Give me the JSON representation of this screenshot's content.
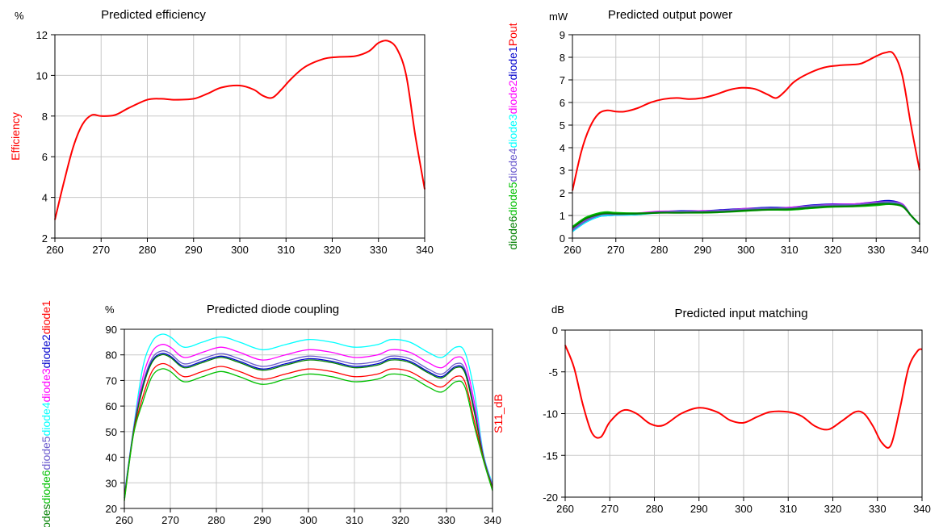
{
  "chart_data": [
    {
      "id": "efficiency",
      "type": "line",
      "title": "Predicted efficiency",
      "unit": "%",
      "xlabel": "",
      "ylabel_parts": [
        {
          "text": "Efficiency",
          "color": "#ff0000"
        }
      ],
      "xlim": [
        260,
        340
      ],
      "ylim": [
        2,
        12
      ],
      "xticks": [
        260,
        270,
        280,
        290,
        300,
        310,
        320,
        330,
        340
      ],
      "yticks": [
        2,
        4,
        6,
        8,
        10,
        12
      ],
      "grid": true,
      "series": [
        {
          "color": "#ff0000",
          "x": [
            260,
            262,
            264,
            266,
            268,
            270,
            273,
            276,
            280,
            283,
            286,
            290,
            293,
            296,
            300,
            303,
            305,
            307,
            309,
            311,
            314,
            318,
            321,
            325,
            328,
            330,
            332,
            334,
            336,
            338,
            340
          ],
          "y": [
            2.9,
            4.8,
            6.5,
            7.6,
            8.05,
            8.0,
            8.05,
            8.4,
            8.8,
            8.85,
            8.8,
            8.85,
            9.1,
            9.4,
            9.5,
            9.3,
            9.0,
            8.9,
            9.3,
            9.8,
            10.4,
            10.8,
            10.9,
            10.95,
            11.2,
            11.6,
            11.7,
            11.3,
            10.0,
            7.0,
            4.4
          ]
        }
      ]
    },
    {
      "id": "output_power",
      "type": "line",
      "title": "Predicted output power",
      "unit": "mW",
      "xlabel": "",
      "ylabel_parts": [
        {
          "text": "diode6",
          "color": "#008000"
        },
        {
          "text": "diode5",
          "color": "#00c000"
        },
        {
          "text": "diode4",
          "color": "#6a5acd"
        },
        {
          "text": "diode3",
          "color": "#00ffff"
        },
        {
          "text": "diode2",
          "color": "#ff00ff"
        },
        {
          "text": "diode1",
          "color": "#0000cd"
        },
        {
          "text": "Pout",
          "color": "#ff0000"
        }
      ],
      "xlim": [
        260,
        340
      ],
      "ylim": [
        0,
        9
      ],
      "xticks": [
        260,
        270,
        280,
        290,
        300,
        310,
        320,
        330,
        340
      ],
      "yticks": [
        0,
        1,
        2,
        3,
        4,
        5,
        6,
        7,
        8,
        9
      ],
      "grid": true,
      "series": [
        {
          "color": "#ff0000",
          "x": [
            260,
            262,
            264,
            266,
            268,
            270,
            272,
            275,
            278,
            281,
            284,
            287,
            290,
            293,
            296,
            299,
            302,
            305,
            307,
            309,
            311,
            314,
            318,
            322,
            326,
            328,
            330,
            332,
            334,
            336,
            338,
            340
          ],
          "y": [
            2.1,
            3.8,
            4.9,
            5.5,
            5.65,
            5.6,
            5.6,
            5.75,
            6.0,
            6.15,
            6.2,
            6.15,
            6.2,
            6.35,
            6.55,
            6.65,
            6.6,
            6.35,
            6.2,
            6.5,
            6.9,
            7.25,
            7.55,
            7.65,
            7.7,
            7.85,
            8.05,
            8.2,
            8.15,
            7.2,
            5.0,
            3.0
          ]
        },
        {
          "color": "#0000cd",
          "x": [
            260,
            263,
            266,
            268,
            270,
            275,
            280,
            285,
            290,
            295,
            300,
            305,
            310,
            315,
            320,
            325,
            330,
            333,
            336,
            338,
            340
          ],
          "y": [
            0.3,
            0.7,
            0.95,
            1.0,
            1.02,
            1.05,
            1.15,
            1.2,
            1.2,
            1.25,
            1.3,
            1.35,
            1.35,
            1.45,
            1.5,
            1.5,
            1.6,
            1.65,
            1.5,
            1.0,
            0.6
          ]
        },
        {
          "color": "#ff00ff",
          "x": [
            260,
            263,
            266,
            268,
            270,
            275,
            280,
            285,
            290,
            295,
            300,
            305,
            310,
            315,
            320,
            325,
            330,
            333,
            336,
            338,
            340
          ],
          "y": [
            0.4,
            0.8,
            1.05,
            1.1,
            1.1,
            1.1,
            1.18,
            1.18,
            1.2,
            1.22,
            1.3,
            1.3,
            1.35,
            1.42,
            1.48,
            1.5,
            1.58,
            1.6,
            1.5,
            1.0,
            0.6
          ]
        },
        {
          "color": "#00ffff",
          "x": [
            260,
            263,
            266,
            268,
            270,
            275,
            280,
            285,
            290,
            295,
            300,
            305,
            310,
            315,
            320,
            325,
            330,
            333,
            336,
            338,
            340
          ],
          "y": [
            0.3,
            0.7,
            0.95,
            1.0,
            1.02,
            1.05,
            1.12,
            1.15,
            1.15,
            1.2,
            1.25,
            1.3,
            1.3,
            1.4,
            1.45,
            1.45,
            1.55,
            1.58,
            1.45,
            1.0,
            0.6
          ]
        },
        {
          "color": "#6a5acd",
          "x": [
            260,
            263,
            266,
            268,
            270,
            275,
            280,
            285,
            290,
            295,
            300,
            305,
            310,
            315,
            320,
            325,
            330,
            333,
            336,
            338,
            340
          ],
          "y": [
            0.35,
            0.75,
            1.0,
            1.05,
            1.05,
            1.08,
            1.15,
            1.18,
            1.18,
            1.22,
            1.28,
            1.32,
            1.32,
            1.42,
            1.46,
            1.48,
            1.56,
            1.6,
            1.48,
            1.0,
            0.6
          ]
        },
        {
          "color": "#00c000",
          "x": [
            260,
            263,
            266,
            268,
            270,
            275,
            280,
            285,
            290,
            295,
            300,
            305,
            310,
            315,
            320,
            325,
            330,
            333,
            336,
            338,
            340
          ],
          "y": [
            0.5,
            0.9,
            1.1,
            1.15,
            1.12,
            1.1,
            1.12,
            1.12,
            1.12,
            1.15,
            1.2,
            1.25,
            1.25,
            1.32,
            1.38,
            1.4,
            1.45,
            1.5,
            1.4,
            1.0,
            0.6
          ]
        },
        {
          "color": "#008000",
          "x": [
            260,
            263,
            266,
            268,
            270,
            275,
            280,
            285,
            290,
            295,
            300,
            305,
            310,
            315,
            320,
            325,
            330,
            333,
            336,
            338,
            340
          ],
          "y": [
            0.45,
            0.85,
            1.05,
            1.1,
            1.08,
            1.08,
            1.12,
            1.12,
            1.14,
            1.16,
            1.22,
            1.26,
            1.28,
            1.35,
            1.4,
            1.42,
            1.5,
            1.52,
            1.42,
            1.0,
            0.6
          ]
        }
      ]
    },
    {
      "id": "diode_coupling",
      "type": "line",
      "title": "Predicted diode coupling",
      "unit": "%",
      "xlabel": "",
      "ylabel_parts": [
        {
          "text": "diodes",
          "color": "#008000"
        },
        {
          "text": "diode6",
          "color": "#00c000"
        },
        {
          "text": "diode5",
          "color": "#6a5acd"
        },
        {
          "text": "diode4",
          "color": "#00ffff"
        },
        {
          "text": "diode3",
          "color": "#ff00ff"
        },
        {
          "text": "diode2",
          "color": "#0000cd"
        },
        {
          "text": "diode1",
          "color": "#ff0000"
        }
      ],
      "xlim": [
        260,
        340
      ],
      "ylim": [
        20,
        90
      ],
      "xticks": [
        260,
        270,
        280,
        290,
        300,
        310,
        320,
        330,
        340
      ],
      "yticks": [
        20,
        30,
        40,
        50,
        60,
        70,
        80,
        90
      ],
      "grid": true,
      "shape_x": [
        260,
        262,
        264,
        266,
        268,
        270,
        273,
        277,
        281,
        285,
        290,
        295,
        300,
        305,
        310,
        315,
        318,
        322,
        326,
        329,
        332,
        334,
        336,
        338,
        340
      ],
      "shape_base": [
        24,
        50,
        67,
        77,
        80,
        79,
        75,
        77,
        79,
        77,
        74,
        76,
        78,
        77,
        75,
        76,
        78,
        77,
        73,
        71,
        75,
        73,
        58,
        40,
        28
      ],
      "series": [
        {
          "color": "#00ffff",
          "offset": 8.0
        },
        {
          "color": "#ff00ff",
          "offset": 4.0
        },
        {
          "color": "#6a5acd",
          "offset": 1.5
        },
        {
          "color": "#0000cd",
          "offset": 0.5
        },
        {
          "color": "#008000",
          "offset": 0.0
        },
        {
          "color": "#ff0000",
          "offset": -3.5
        },
        {
          "color": "#00c000",
          "offset": -5.5
        }
      ]
    },
    {
      "id": "input_matching",
      "type": "line",
      "title": "Predicted input matching",
      "unit": "dB",
      "xlabel": "",
      "ylabel_parts": [
        {
          "text": "S11_dB",
          "color": "#ff0000"
        }
      ],
      "xlim": [
        260,
        340
      ],
      "ylim": [
        -20,
        0
      ],
      "xticks": [
        260,
        270,
        280,
        290,
        300,
        310,
        320,
        330,
        340
      ],
      "yticks": [
        -20,
        -15,
        -10,
        -5,
        0
      ],
      "grid": true,
      "series": [
        {
          "color": "#ff0000",
          "x": [
            260,
            262,
            264,
            266,
            268,
            270,
            273,
            276,
            279,
            282,
            286,
            290,
            294,
            297,
            300,
            303,
            306,
            310,
            313,
            316,
            319,
            322,
            325,
            327,
            329,
            331,
            333,
            335,
            337,
            339,
            340
          ],
          "y": [
            -1.8,
            -4.5,
            -9.0,
            -12.3,
            -12.8,
            -11.0,
            -9.6,
            -10.0,
            -11.2,
            -11.4,
            -10.0,
            -9.3,
            -9.8,
            -10.8,
            -11.1,
            -10.4,
            -9.8,
            -9.8,
            -10.3,
            -11.5,
            -11.9,
            -10.9,
            -9.8,
            -10.0,
            -11.5,
            -13.5,
            -13.8,
            -9.5,
            -4.5,
            -2.5,
            -2.3
          ]
        }
      ]
    }
  ]
}
